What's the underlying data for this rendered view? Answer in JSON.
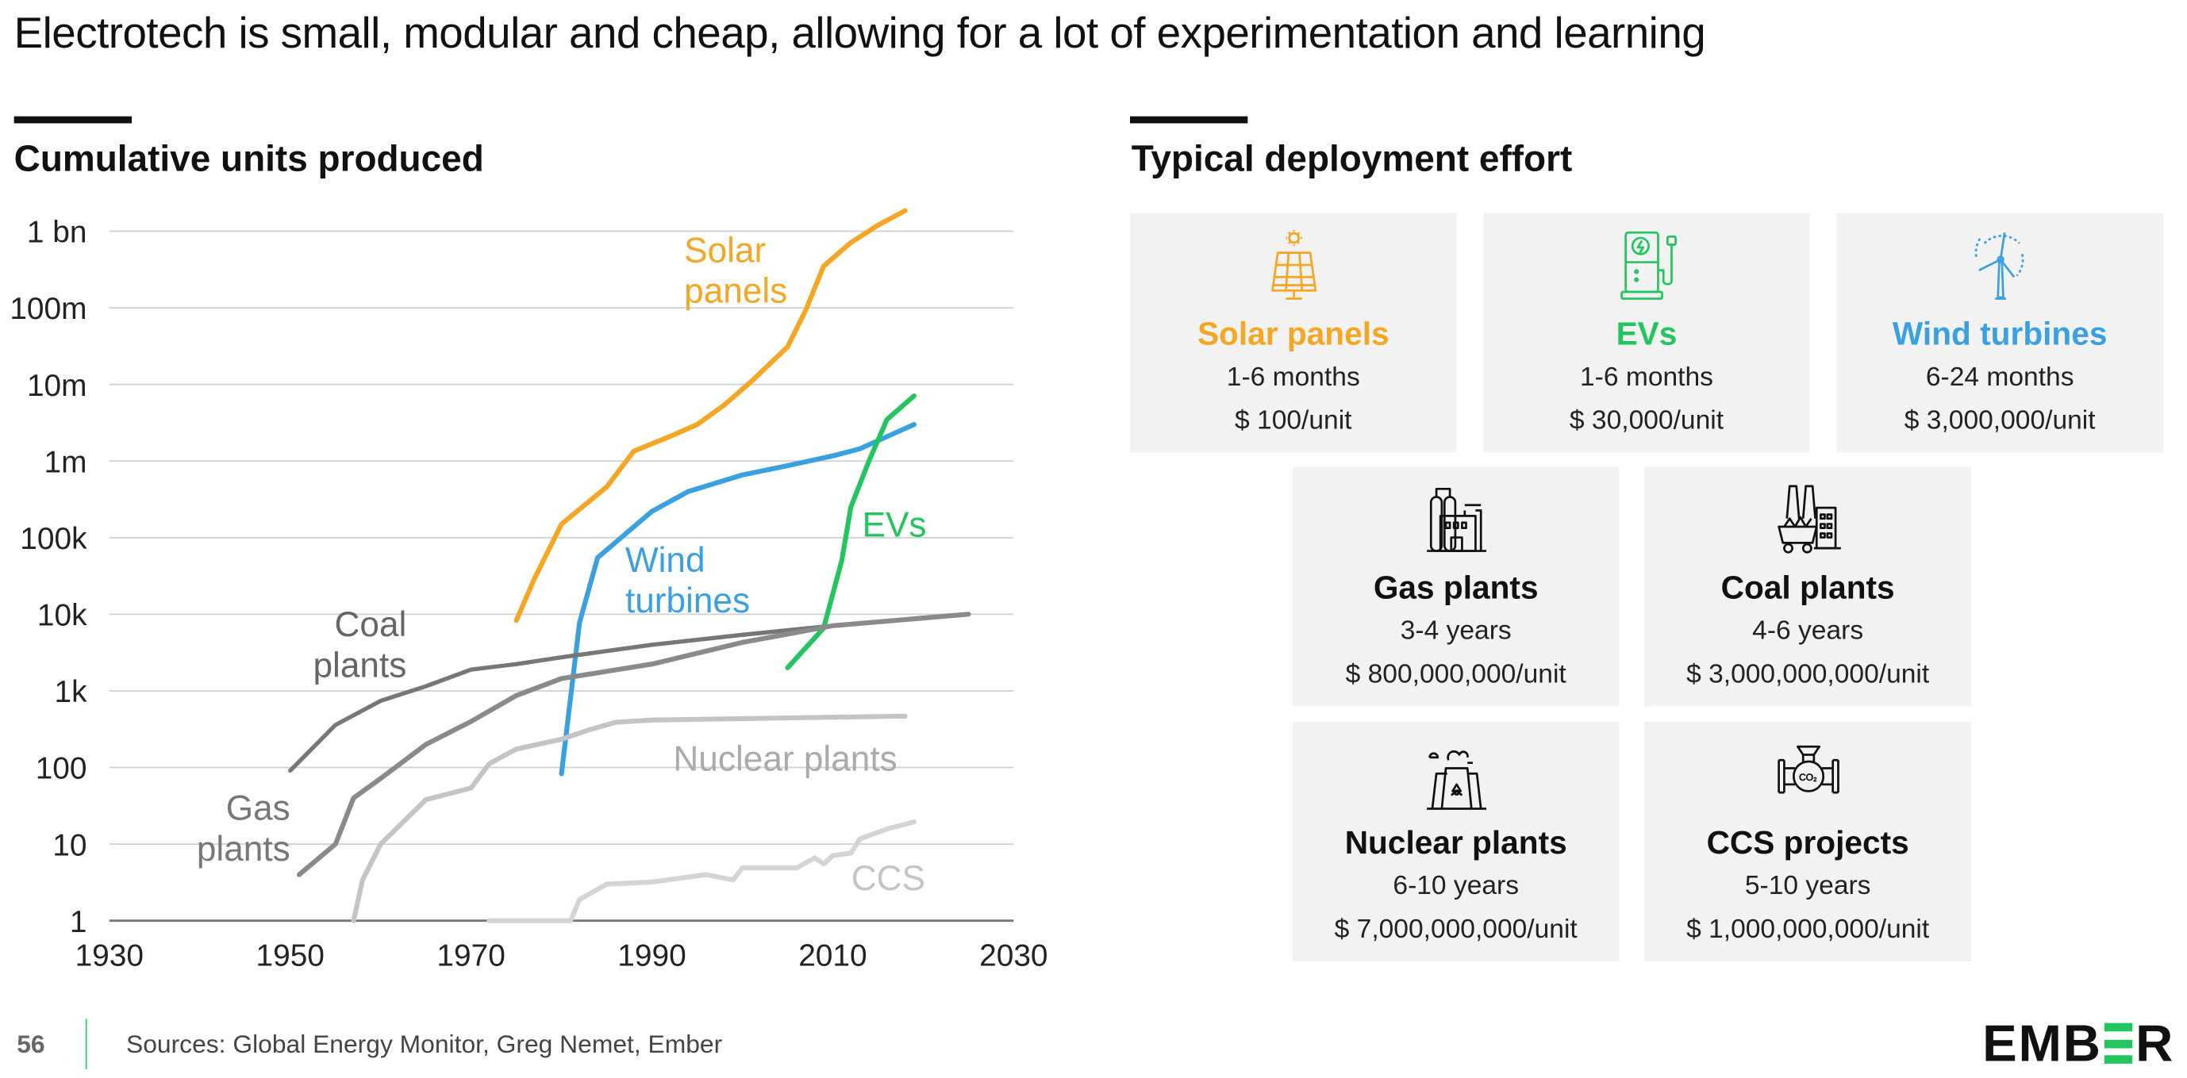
{
  "header": {
    "subtitle": "Electrotech is small, modular and cheap, allowing for a lot of experimentation and learning"
  },
  "left_section": {
    "title": "Cumulative units produced"
  },
  "right_section": {
    "title": "Typical deployment effort",
    "cards": [
      {
        "title": "Solar panels",
        "duration": "1-6 months",
        "cost": "$ 100/unit",
        "color": "#f5a623",
        "icon": "solar-panel-icon"
      },
      {
        "title": "EVs",
        "duration": "1-6 months",
        "cost": "$ 30,000/unit",
        "color": "#22c55e",
        "icon": "ev-charger-icon"
      },
      {
        "title": "Wind turbines",
        "duration": "6-24 months",
        "cost": "$ 3,000,000/unit",
        "color": "#3aa0e0",
        "icon": "wind-turbine-icon"
      },
      {
        "title": "Gas plants",
        "duration": "3-4 years",
        "cost": "$ 800,000,000/unit",
        "color": "#111111",
        "icon": "gas-plant-icon"
      },
      {
        "title": "Coal plants",
        "duration": "4-6 years",
        "cost": "$ 3,000,000,000/unit",
        "color": "#111111",
        "icon": "coal-plant-icon"
      },
      {
        "title": "Nuclear plants",
        "duration": "6-10 years",
        "cost": "$ 7,000,000,000/unit",
        "color": "#111111",
        "icon": "nuclear-plant-icon"
      },
      {
        "title": "CCS projects",
        "duration": "5-10 years",
        "cost": "$ 1,000,000,000/unit",
        "color": "#111111",
        "icon": "co2-pipe-icon"
      }
    ]
  },
  "chart_data": {
    "type": "line",
    "title": "Cumulative units produced",
    "yscale": "log",
    "xlim": [
      1930,
      2030
    ],
    "ylim": [
      1,
      1000000000
    ],
    "x_ticks": [
      "1930",
      "1950",
      "1970",
      "1990",
      "2010",
      "2030"
    ],
    "y_ticks": [
      "1",
      "10",
      "100",
      "1k",
      "10k",
      "100k",
      "1m",
      "10m",
      "100m",
      "1 bn"
    ],
    "grid": "horizontal",
    "series": [
      {
        "name": "Solar panels",
        "label_lines": [
          "Solar",
          "panels"
        ],
        "color": "#f5a623",
        "points": [
          [
            1975,
            8300
          ],
          [
            1977,
            29000
          ],
          [
            1980,
            150000
          ],
          [
            1985,
            460000
          ],
          [
            1988,
            1350000
          ],
          [
            1992,
            2100000
          ],
          [
            1995,
            3000000
          ],
          [
            1998,
            5400000
          ],
          [
            2001,
            11000000
          ],
          [
            2005,
            31000000
          ],
          [
            2007,
            93000000
          ],
          [
            2009,
            350000000
          ],
          [
            2012,
            710000000
          ],
          [
            2015,
            1200000000
          ],
          [
            2018,
            1860000000
          ]
        ]
      },
      {
        "name": "Wind turbines",
        "label_lines": [
          "Wind",
          "turbines"
        ],
        "color": "#3aa0e0",
        "points": [
          [
            1980,
            83
          ],
          [
            1982,
            7800
          ],
          [
            1984,
            55000
          ],
          [
            1990,
            220000
          ],
          [
            1994,
            400000
          ],
          [
            2000,
            660000
          ],
          [
            2005,
            870000
          ],
          [
            2010,
            1170000
          ],
          [
            2013,
            1450000
          ],
          [
            2019,
            3000000
          ]
        ]
      },
      {
        "name": "EVs",
        "label_lines": [
          "EVs"
        ],
        "color": "#22c55e",
        "points": [
          [
            2005,
            2000
          ],
          [
            2009,
            6600
          ],
          [
            2011,
            51000
          ],
          [
            2012,
            250000
          ],
          [
            2014,
            1000000
          ],
          [
            2016,
            3500000
          ],
          [
            2019,
            7100000
          ]
        ]
      },
      {
        "name": "Coal plants",
        "label_lines": [
          "Coal",
          "plants"
        ],
        "color": "#777777",
        "points": [
          [
            1950,
            91
          ],
          [
            1955,
            360
          ],
          [
            1960,
            740
          ],
          [
            1965,
            1150
          ],
          [
            1970,
            1900
          ],
          [
            1975,
            2240
          ],
          [
            1980,
            2750
          ],
          [
            1990,
            4000
          ],
          [
            2000,
            5400
          ],
          [
            2010,
            7100
          ],
          [
            2025,
            10000
          ]
        ]
      },
      {
        "name": "Gas plants",
        "label_lines": [
          "Gas",
          "plants"
        ],
        "color": "#8a8a8a",
        "points": [
          [
            1951,
            4
          ],
          [
            1955,
            10
          ],
          [
            1957,
            40
          ],
          [
            1960,
            72
          ],
          [
            1965,
            200
          ],
          [
            1970,
            400
          ],
          [
            1975,
            870
          ],
          [
            1980,
            1450
          ],
          [
            1990,
            2240
          ],
          [
            2000,
            4300
          ],
          [
            2010,
            7100
          ],
          [
            2025,
            10000
          ]
        ]
      },
      {
        "name": "Nuclear plants",
        "label_lines": [
          "Nuclear plants"
        ],
        "color": "#c4c4c4",
        "points": [
          [
            1957,
            1
          ],
          [
            1958,
            3.4
          ],
          [
            1960,
            10
          ],
          [
            1962,
            17
          ],
          [
            1965,
            38
          ],
          [
            1970,
            54
          ],
          [
            1972,
            112
          ],
          [
            1975,
            174
          ],
          [
            1980,
            234
          ],
          [
            1983,
            309
          ],
          [
            1986,
            389
          ],
          [
            1990,
            417
          ],
          [
            2018,
            468
          ]
        ]
      },
      {
        "name": "CCS",
        "label_lines": [
          "CCS"
        ],
        "color": "#d4d4d4",
        "points": [
          [
            1972,
            1
          ],
          [
            1981,
            1
          ],
          [
            1982,
            1.9
          ],
          [
            1985,
            3
          ],
          [
            1990,
            3.2
          ],
          [
            1996,
            4
          ],
          [
            1999,
            3.4
          ],
          [
            2000,
            4.9
          ],
          [
            2006,
            4.9
          ],
          [
            2008,
            6.6
          ],
          [
            2009,
            5.5
          ],
          [
            2010,
            7.1
          ],
          [
            2012,
            7.6
          ],
          [
            2013,
            11.7
          ],
          [
            2016,
            15.8
          ],
          [
            2019,
            19.5
          ]
        ]
      }
    ]
  },
  "footer": {
    "page_number": "56",
    "sources": "Sources: Global Energy Monitor, Greg Nemet, Ember",
    "logo": "EMBER"
  }
}
